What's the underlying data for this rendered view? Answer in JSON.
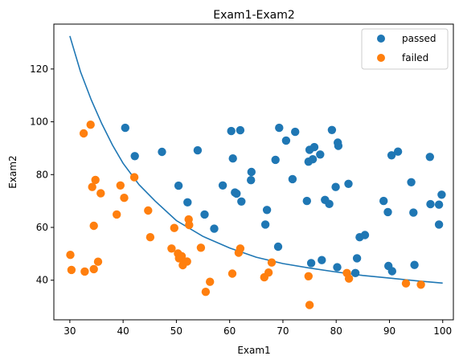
{
  "chart_data": {
    "type": "scatter",
    "title": "Exam1-Exam2",
    "xlabel": "Exam1",
    "ylabel": "Exam2",
    "xlim": [
      27,
      102
    ],
    "ylim": [
      25,
      137
    ],
    "xticks": [
      30,
      40,
      50,
      60,
      70,
      80,
      90,
      100
    ],
    "yticks": [
      40,
      60,
      80,
      100,
      120
    ],
    "grid": false,
    "legend_position": "top-right",
    "series": [
      {
        "name": "passed",
        "color": "#1f77b4",
        "x": [
          40.4,
          42.2,
          47.3,
          50.4,
          52.1,
          54.0,
          55.3,
          57.1,
          58.7,
          60.3,
          61.0,
          60.6,
          61.3,
          62.0,
          62.2,
          64.1,
          64.0,
          66.7,
          67.0,
          68.6,
          69.3,
          69.1,
          70.6,
          71.8,
          72.3,
          74.5,
          74.8,
          75.0,
          75.3,
          75.6,
          75.9,
          77.0,
          77.3,
          77.9,
          78.7,
          79.2,
          79.9,
          80.2,
          80.3,
          80.4,
          82.3,
          83.6,
          83.9,
          84.4,
          85.4,
          88.9,
          89.7,
          89.8,
          90.4,
          90.5,
          91.6,
          94.1,
          94.5,
          94.7,
          97.6,
          97.7,
          99.3,
          99.3,
          99.8
        ],
        "y": [
          97.7,
          87.0,
          88.6,
          75.8,
          69.5,
          89.2,
          64.9,
          59.5,
          75.9,
          96.5,
          73.2,
          86.1,
          72.8,
          96.8,
          69.8,
          81.0,
          77.9,
          61.1,
          66.6,
          85.6,
          97.7,
          52.7,
          92.9,
          78.3,
          96.2,
          70.0,
          84.9,
          89.4,
          46.5,
          85.8,
          90.4,
          87.6,
          47.6,
          70.4,
          68.9,
          96.9,
          75.3,
          44.9,
          92.1,
          90.9,
          76.5,
          42.7,
          48.3,
          56.3,
          57.1,
          70.0,
          65.8,
          45.4,
          87.3,
          43.4,
          88.7,
          77.1,
          65.6,
          45.8,
          86.7,
          68.8,
          68.6,
          61.1,
          72.4
        ]
      },
      {
        "name": "failed",
        "color": "#ff7f0e",
        "x": [
          30.1,
          30.3,
          32.6,
          32.8,
          33.9,
          34.2,
          34.5,
          34.5,
          34.8,
          35.3,
          35.8,
          38.8,
          39.5,
          40.2,
          42.1,
          44.7,
          45.1,
          49.1,
          49.6,
          50.3,
          50.5,
          51.0,
          51.2,
          51.5,
          52.0,
          52.3,
          52.4,
          54.6,
          55.5,
          56.3,
          60.5,
          61.7,
          62.0,
          66.5,
          67.3,
          67.9,
          74.8,
          75.0,
          82.0,
          82.4,
          93.1,
          95.9
        ],
        "y": [
          49.6,
          43.9,
          95.6,
          43.3,
          98.9,
          75.3,
          44.2,
          60.6,
          78.0,
          47.0,
          72.9,
          64.9,
          75.9,
          71.2,
          79.0,
          66.4,
          56.3,
          52.0,
          59.8,
          50.1,
          48.3,
          49.1,
          45.7,
          46.9,
          47.1,
          63.0,
          60.9,
          52.3,
          35.6,
          39.4,
          42.5,
          50.4,
          52.0,
          41.1,
          42.9,
          46.7,
          41.5,
          30.6,
          42.7,
          40.6,
          38.8,
          38.3
        ]
      }
    ],
    "boundary": {
      "color": "#1f77b4",
      "x": [
        30,
        32,
        34,
        36,
        38,
        40,
        43,
        46,
        50,
        55,
        60,
        65,
        70,
        75,
        80,
        85,
        90,
        95,
        100
      ],
      "y": [
        132.5,
        119.0,
        108.4,
        99.3,
        91.2,
        84.3,
        76.2,
        70.0,
        62.6,
        56.6,
        52.2,
        48.7,
        46.3,
        44.6,
        43.1,
        41.8,
        40.8,
        39.8,
        38.9
      ]
    }
  }
}
